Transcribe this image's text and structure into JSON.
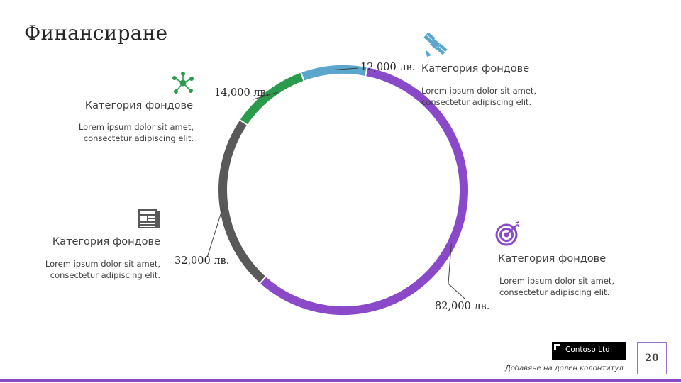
{
  "page": {
    "title": "Финансиране",
    "footer_text": "Добавяне на долен колонтитул",
    "page_number": "20",
    "logo_text": "Contoso Ltd."
  },
  "categories": [
    {
      "title": "Категория фондове",
      "body_line1": "Lorem ipsum dolor sit amet,",
      "body_line2": "consectetur adipiscing elit.",
      "icon": "network-icon",
      "color": "#2a9a4c"
    },
    {
      "title": "Категория фондове",
      "body_line1": "Lorem ipsum dolor sit amet,",
      "body_line2": "consectetur adipiscing elit.",
      "icon": "satellite-icon",
      "color": "#5aa6cd"
    },
    {
      "title": "Категория фондове",
      "body_line1": "Lorem ipsum dolor sit amet,",
      "body_line2": "consectetur adipiscing elit.",
      "icon": "newspaper-icon",
      "color": "#595959"
    },
    {
      "title": "Категория фондове",
      "body_line1": "Lorem ipsum dolor sit amet,",
      "body_line2": "consectetur adipiscing elit.",
      "icon": "target-icon",
      "color": "#8a49c9"
    }
  ],
  "chart_data": {
    "type": "pie",
    "style": "ring",
    "slices": [
      {
        "label": "12,000 лв.",
        "value": 12000,
        "color": "#5aa6cd"
      },
      {
        "label": "82,000 лв.",
        "value": 82000,
        "color": "#8a49c9"
      },
      {
        "label": "32,000 лв.",
        "value": 32000,
        "color": "#595959"
      },
      {
        "label": "14,000 лв.",
        "value": 14000,
        "color": "#2a9a4c"
      }
    ]
  }
}
